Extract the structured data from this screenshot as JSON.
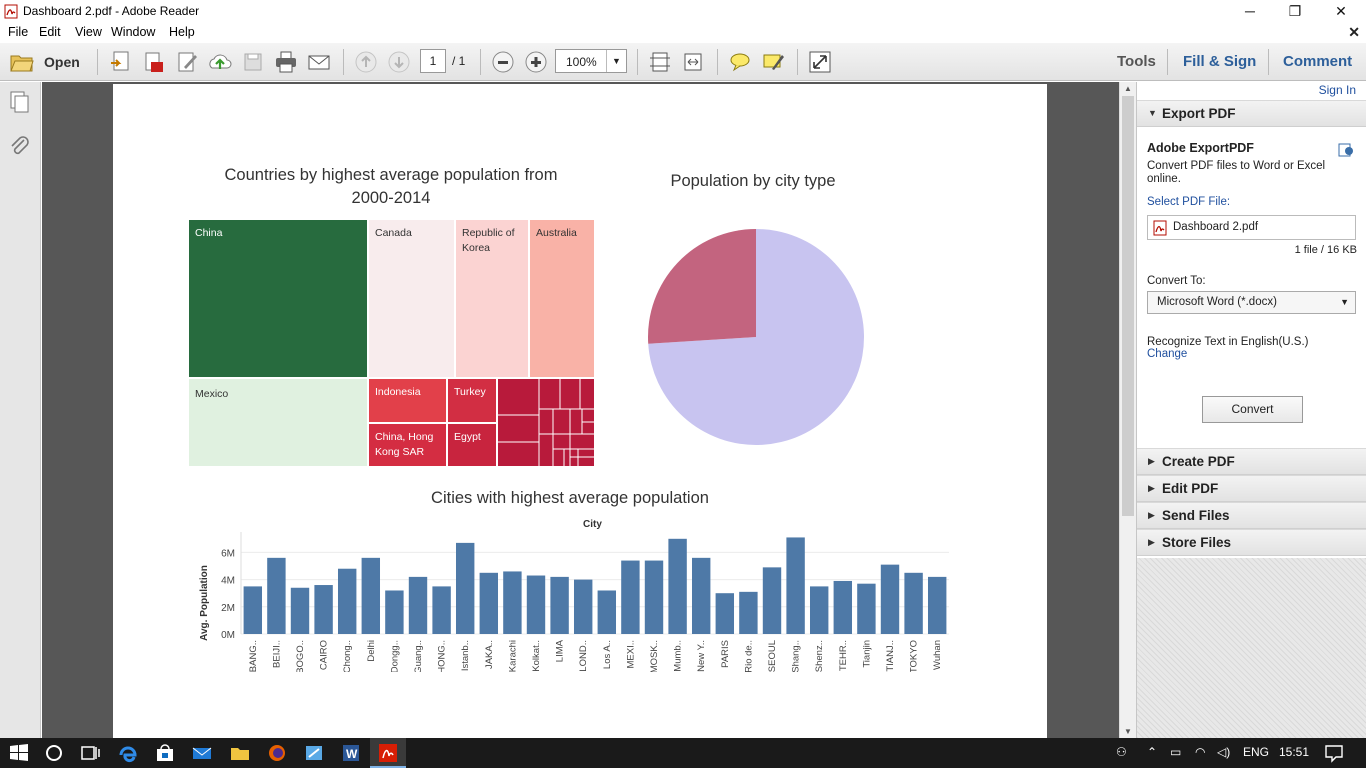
{
  "window": {
    "title": "Dashboard 2.pdf - Adobe Reader",
    "minimize": "─",
    "maximize": "❐",
    "close": "✕"
  },
  "menu": [
    "File",
    "Edit",
    "View",
    "Window",
    "Help"
  ],
  "toolbar": {
    "open_label": "Open",
    "page_current": "1",
    "page_total": "/ 1",
    "zoom": "100%",
    "tools": "Tools",
    "fill_sign": "Fill & Sign",
    "comment": "Comment"
  },
  "right_panel": {
    "sign_in": "Sign In",
    "export_title": "Export PDF",
    "adobe_export": "Adobe ExportPDF",
    "convert_desc": "Convert PDF files to Word or Excel online.",
    "select_label": "Select PDF File:",
    "file_name": "Dashboard 2.pdf",
    "file_info": "1 file / 16 KB",
    "convert_to_label": "Convert To:",
    "convert_format": "Microsoft Word (*.docx)",
    "recognize": "Recognize Text in English(U.S.)",
    "change": "Change",
    "convert_button": "Convert",
    "sections": [
      "Create PDF",
      "Edit PDF",
      "Send Files",
      "Store Files"
    ]
  },
  "taskbar": {
    "lang": "ENG",
    "time": "15:51"
  },
  "colors": {
    "treemap_green_dark": "#276b3e",
    "treemap_green_light": "#e0f1e0",
    "pie_lavender": "#c8c4f0",
    "pie_rose": "#c3647f",
    "bar_blue": "#4e79a7"
  },
  "chart_data": [
    {
      "type": "treemap",
      "title": "Countries by highest average population from 2000-2014",
      "labels": [
        "China",
        "Canada",
        "Republic of Korea",
        "Australia",
        "Mexico",
        "Indonesia",
        "Turkey",
        "China, Hong Kong SAR",
        "Egypt"
      ]
    },
    {
      "type": "pie",
      "title": "Population by city type",
      "slices": [
        {
          "share": 0.74,
          "color": "#c8c4f0"
        },
        {
          "share": 0.26,
          "color": "#c3647f"
        }
      ]
    },
    {
      "type": "bar",
      "title": "Cities with highest average population",
      "xlabel": "City",
      "ylabel": "Avg. Population",
      "yticks": [
        "0M",
        "2M",
        "4M",
        "6M"
      ],
      "ylim": [
        0,
        7.5
      ],
      "categories": [
        "BANG..",
        "BEIJI..",
        "BOGO..",
        "CAIRO",
        "Chong..",
        "Delhi",
        "Dongg..",
        "Guang..",
        "HONG..",
        "Istanb..",
        "JAKA..",
        "Karachi",
        "Kolkat..",
        "LIMA",
        "LOND..",
        "Los A..",
        "MEXI..",
        "MOSK..",
        "Mumb..",
        "New Y..",
        "PARIS",
        "Rio de..",
        "SEOUL",
        "Shang..",
        "Shenz..",
        "TEHR..",
        "Tianjin",
        "TIANJ..",
        "TOKYO",
        "Wuhan"
      ],
      "values": [
        3.5,
        5.6,
        3.4,
        3.6,
        4.8,
        5.6,
        3.2,
        4.2,
        3.5,
        6.7,
        4.5,
        4.6,
        4.3,
        4.2,
        4.0,
        3.2,
        5.4,
        5.4,
        7.0,
        5.6,
        3.0,
        3.1,
        4.9,
        7.1,
        3.5,
        3.9,
        3.7,
        5.1,
        4.5,
        4.2
      ]
    }
  ]
}
